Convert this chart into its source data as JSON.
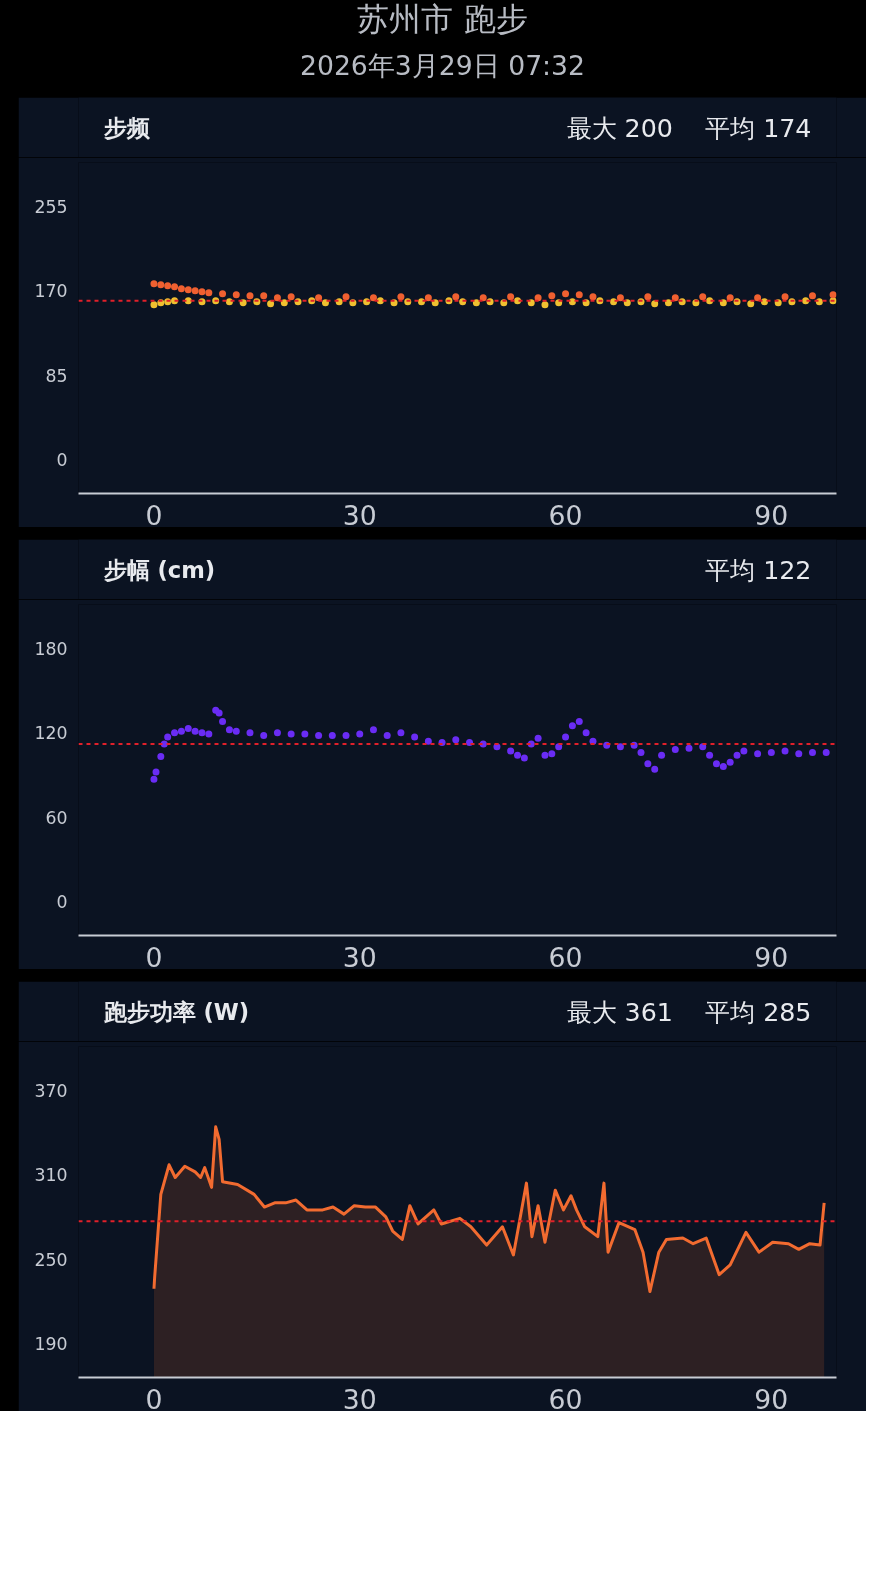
{
  "chart_data": [
    {
      "type": "other",
      "title": "苏州市 跑步",
      "subtitle": "2026年3月29日 07:32"
    },
    {
      "type": "scatter",
      "title": "步频",
      "annotations": [
        "最大 200",
        "平均 174"
      ],
      "marker": "circle",
      "grid": false,
      "xlim": [
        -11,
        99.5
      ],
      "xticks": [
        0,
        30,
        60,
        90
      ],
      "ylim": [
        -34,
        299
      ],
      "yticks": [
        0,
        85,
        170,
        255
      ],
      "ref_lines": [
        {
          "axis": "y",
          "value": 160,
          "color": "#e0202a",
          "line_style": "dashed"
        }
      ],
      "series": [
        {
          "color": "#f0c030",
          "x": [
            0,
            1,
            2,
            3,
            5,
            7,
            9,
            11,
            13,
            15,
            17,
            19,
            21,
            23,
            25,
            27,
            29,
            31,
            33,
            35,
            37,
            39,
            41,
            43,
            45,
            47,
            49,
            51,
            53,
            55,
            57,
            59,
            61,
            63,
            65,
            67,
            69,
            71,
            73,
            75,
            77,
            79,
            81,
            83,
            85,
            87,
            89,
            91,
            93,
            95,
            97,
            99
          ],
          "values": [
            156,
            158,
            159,
            160,
            160,
            159,
            160,
            159,
            158,
            159,
            157,
            158,
            159,
            160,
            158,
            159,
            158,
            159,
            160,
            158,
            159,
            159,
            158,
            160,
            159,
            158,
            159,
            158,
            160,
            158,
            156,
            158,
            159,
            158,
            160,
            159,
            158,
            159,
            157,
            158,
            159,
            158,
            160,
            158,
            159,
            157,
            159,
            158,
            159,
            160,
            159,
            160
          ]
        },
        {
          "color": "#f06030",
          "x": [
            0,
            1,
            2,
            3,
            4,
            5,
            6,
            7,
            8,
            10,
            12,
            14,
            16,
            18,
            20,
            24,
            28,
            32,
            36,
            40,
            44,
            48,
            52,
            56,
            58,
            60,
            62,
            64,
            68,
            72,
            76,
            80,
            84,
            88,
            92,
            96,
            99
          ],
          "values": [
            177,
            176,
            175,
            174,
            172,
            171,
            170,
            169,
            168,
            167,
            166,
            165,
            165,
            163,
            164,
            163,
            164,
            163,
            164,
            163,
            164,
            163,
            164,
            163,
            165,
            167,
            166,
            164,
            163,
            164,
            163,
            164,
            163,
            163,
            164,
            165,
            166
          ]
        }
      ]
    },
    {
      "type": "scatter",
      "title": "步幅 (cm)",
      "annotations": [
        "平均 122"
      ],
      "marker": "circle",
      "grid": false,
      "xlim": [
        -11,
        99.5
      ],
      "xticks": [
        0,
        30,
        60,
        90
      ],
      "ylim": [
        -24,
        211
      ],
      "yticks": [
        0,
        60,
        120,
        180
      ],
      "ref_lines": [
        {
          "axis": "y",
          "value": 112,
          "color": "#e0202a",
          "line_style": "dashed"
        }
      ],
      "series": [
        {
          "color": "#6a2cf5",
          "x": [
            0,
            0.3,
            1,
            1.5,
            2,
            3,
            4,
            5,
            6,
            7,
            8,
            9,
            9.5,
            10,
            11,
            12,
            14,
            16,
            18,
            20,
            22,
            24,
            26,
            28,
            30,
            32,
            34,
            36,
            38,
            40,
            42,
            44,
            46,
            48,
            50,
            52,
            53,
            54,
            55,
            56,
            57,
            58,
            59,
            60,
            61,
            62,
            63,
            64,
            66,
            68,
            70,
            71,
            72,
            73,
            74,
            76,
            78,
            80,
            81,
            82,
            83,
            84,
            85,
            86,
            88,
            90,
            92,
            94,
            96,
            98
          ],
          "values": [
            87,
            92,
            103,
            112,
            117,
            120,
            121,
            123,
            121,
            120,
            119,
            136,
            134,
            128,
            122,
            121,
            120,
            118,
            120,
            119,
            119,
            118,
            118,
            118,
            119,
            122,
            118,
            120,
            117,
            114,
            113,
            115,
            113,
            112,
            110,
            107,
            104,
            102,
            112,
            116,
            104,
            105,
            110,
            117,
            125,
            128,
            120,
            114,
            111,
            110,
            111,
            106,
            98,
            94,
            104,
            108,
            109,
            110,
            104,
            98,
            96,
            99,
            104,
            107,
            105,
            106,
            107,
            105,
            106,
            106
          ]
        }
      ]
    },
    {
      "type": "area",
      "title": "跑步功率 (W)",
      "annotations": [
        "最大 361",
        "平均 285"
      ],
      "grid": false,
      "xlim": [
        -11,
        99.5
      ],
      "xticks": [
        0,
        30,
        60,
        90
      ],
      "ylim": [
        166,
        401
      ],
      "yticks": [
        190,
        250,
        310,
        370
      ],
      "ref_lines": [
        {
          "axis": "y",
          "value": 277,
          "color": "#e0202a",
          "line_style": "dashed"
        }
      ],
      "series": [
        {
          "color": "#f26b30",
          "x": [
            0,
            0.1,
            1,
            2.2,
            3.1,
            4.5,
            6,
            6.8,
            7.4,
            8.4,
            9,
            9.5,
            10,
            12.2,
            14.6,
            16.1,
            17.6,
            19.2,
            20.7,
            22.3,
            24.6,
            26.1,
            27.7,
            29.2,
            30.8,
            32.3,
            33.8,
            34.8,
            36.2,
            37.3,
            38.5,
            40.8,
            41.9,
            44.6,
            46.2,
            48.5,
            50.8,
            52.4,
            54.3,
            55.1,
            56,
            57,
            58.5,
            59.7,
            60.8,
            61.6,
            62.8,
            64.7,
            65.6,
            66.2,
            67.8,
            70.1,
            71.3,
            72.3,
            73.6,
            74.7,
            77.1,
            78.6,
            80.5,
            82.4,
            84,
            86.3,
            88.2,
            90.2,
            92.5,
            94,
            95.6,
            97.1,
            97.7
          ],
          "values": [
            229,
            237,
            296,
            317,
            308,
            316,
            312,
            308,
            315,
            301,
            344,
            335,
            305,
            303,
            296,
            287,
            290,
            290,
            292,
            285,
            285,
            287,
            282,
            288,
            287,
            287,
            280,
            270,
            264,
            288,
            275,
            285,
            275,
            279,
            273,
            260,
            273,
            253,
            304,
            266,
            288,
            262,
            299,
            285,
            295,
            285,
            273,
            266,
            304,
            255,
            276,
            271,
            255,
            227,
            255,
            264,
            265,
            261,
            265,
            239,
            246,
            269,
            255,
            262,
            261,
            257,
            261,
            260,
            290
          ]
        }
      ]
    }
  ]
}
